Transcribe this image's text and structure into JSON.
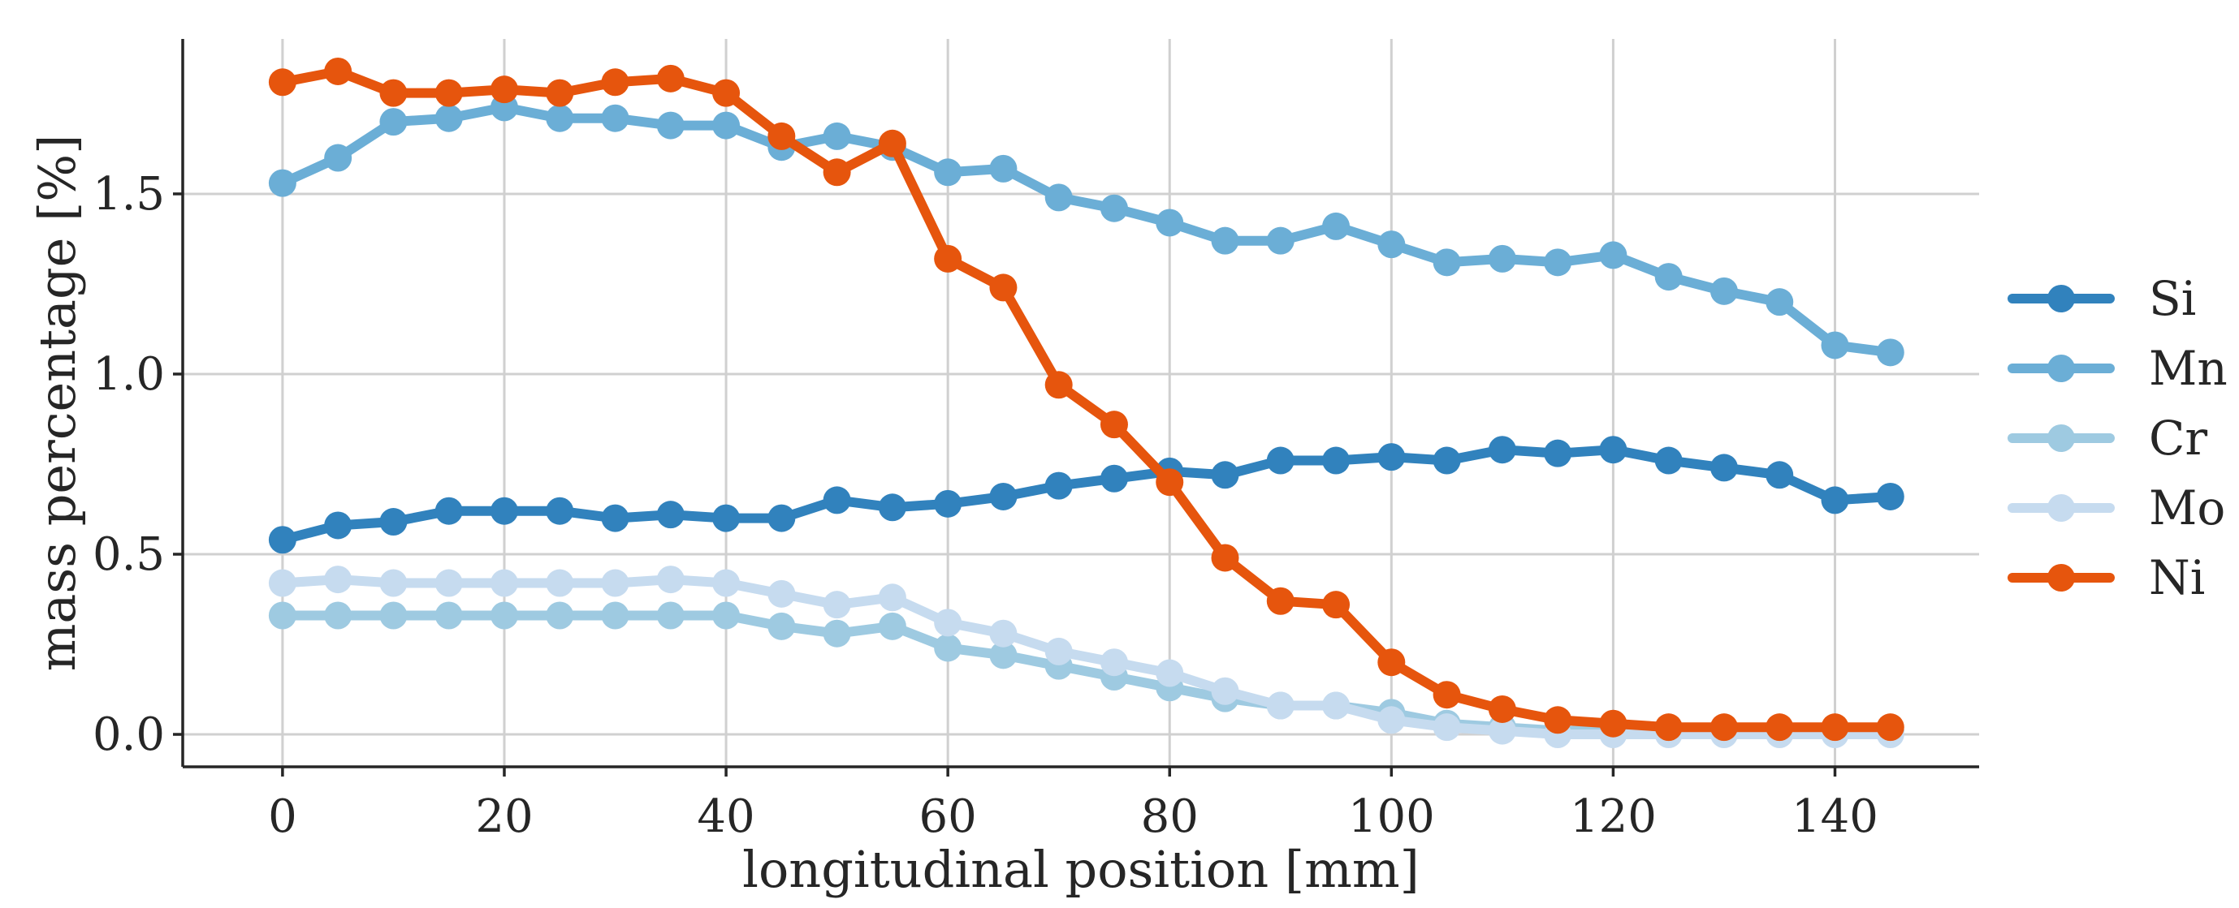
{
  "chart_data": {
    "type": "line",
    "title": "",
    "xlabel": "longitudinal position [mm]",
    "ylabel": "mass percentage [%]",
    "xlim": [
      -9,
      153
    ],
    "ylim": [
      -0.09,
      1.93
    ],
    "grid": true,
    "legend_position": "right",
    "x_ticks": [
      0,
      20,
      40,
      60,
      80,
      100,
      120,
      140
    ],
    "x_tick_labels": [
      "0",
      "20",
      "40",
      "60",
      "80",
      "100",
      "120",
      "140"
    ],
    "y_ticks": [
      0.0,
      0.5,
      1.0,
      1.5
    ],
    "y_tick_labels": [
      "0.0",
      "0.5",
      "1.0",
      "1.5"
    ],
    "x": [
      0,
      5,
      10,
      15,
      20,
      25,
      30,
      35,
      40,
      45,
      50,
      55,
      60,
      65,
      70,
      75,
      80,
      85,
      90,
      95,
      100,
      105,
      110,
      115,
      120,
      125,
      130,
      135,
      140,
      145
    ],
    "series": [
      {
        "name": "Si",
        "color": "#3182bd",
        "values": [
          0.54,
          0.58,
          0.59,
          0.62,
          0.62,
          0.62,
          0.6,
          0.61,
          0.6,
          0.6,
          0.65,
          0.63,
          0.64,
          0.66,
          0.69,
          0.71,
          0.73,
          0.72,
          0.76,
          0.76,
          0.77,
          0.76,
          0.79,
          0.78,
          0.79,
          0.76,
          0.74,
          0.72,
          0.65,
          0.66
        ]
      },
      {
        "name": "Mn",
        "color": "#6baed6",
        "values": [
          1.53,
          1.6,
          1.7,
          1.71,
          1.74,
          1.71,
          1.71,
          1.69,
          1.69,
          1.63,
          1.66,
          1.63,
          1.56,
          1.57,
          1.49,
          1.46,
          1.42,
          1.37,
          1.37,
          1.41,
          1.36,
          1.31,
          1.32,
          1.31,
          1.33,
          1.27,
          1.23,
          1.2,
          1.08,
          1.06
        ]
      },
      {
        "name": "Cr",
        "color": "#9ecae1",
        "values": [
          0.33,
          0.33,
          0.33,
          0.33,
          0.33,
          0.33,
          0.33,
          0.33,
          0.33,
          0.3,
          0.28,
          0.3,
          0.24,
          0.22,
          0.19,
          0.16,
          0.13,
          0.1,
          0.08,
          0.08,
          0.06,
          0.03,
          0.02,
          0.01,
          0.01,
          0.01,
          0.01,
          0.01,
          0.01,
          0.01
        ]
      },
      {
        "name": "Mo",
        "color": "#c6dbef",
        "values": [
          0.42,
          0.43,
          0.42,
          0.42,
          0.42,
          0.42,
          0.42,
          0.43,
          0.42,
          0.39,
          0.36,
          0.38,
          0.31,
          0.28,
          0.23,
          0.2,
          0.17,
          0.12,
          0.08,
          0.08,
          0.04,
          0.02,
          0.01,
          0.0,
          0.0,
          0.0,
          0.0,
          0.0,
          0.0,
          0.0
        ]
      },
      {
        "name": "Ni",
        "color": "#e6550d",
        "values": [
          1.81,
          1.84,
          1.78,
          1.78,
          1.79,
          1.78,
          1.81,
          1.82,
          1.78,
          1.66,
          1.56,
          1.64,
          1.32,
          1.24,
          0.97,
          0.86,
          0.7,
          0.49,
          0.37,
          0.36,
          0.2,
          0.11,
          0.07,
          0.04,
          0.03,
          0.02,
          0.02,
          0.02,
          0.02,
          0.02
        ]
      }
    ]
  }
}
